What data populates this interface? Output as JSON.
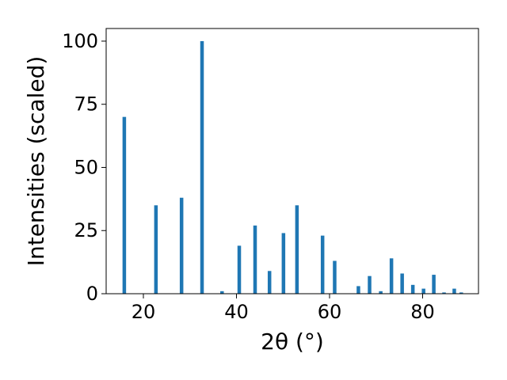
{
  "chart_data": {
    "type": "bar",
    "xlabel": "2θ (°)",
    "ylabel": "Intensities (scaled)",
    "xlim": [
      12,
      92
    ],
    "ylim": [
      0,
      105
    ],
    "x_ticks": [
      20,
      40,
      60,
      80
    ],
    "y_ticks": [
      0,
      25,
      50,
      75,
      100
    ],
    "grid": false,
    "bar_color": "#1f77b4",
    "x": [
      15.9,
      22.7,
      28.2,
      32.6,
      36.9,
      40.6,
      44.0,
      47.1,
      50.1,
      53.0,
      58.5,
      61.1,
      66.2,
      68.6,
      71.0,
      73.3,
      75.6,
      77.9,
      80.2,
      82.4,
      84.6,
      86.8,
      88.3
    ],
    "values": [
      70,
      35,
      38,
      100,
      1,
      19,
      27,
      9,
      24,
      35,
      23,
      13,
      3,
      7,
      1,
      14,
      8,
      3.5,
      2,
      7.5,
      0.5,
      2,
      0.5
    ]
  }
}
